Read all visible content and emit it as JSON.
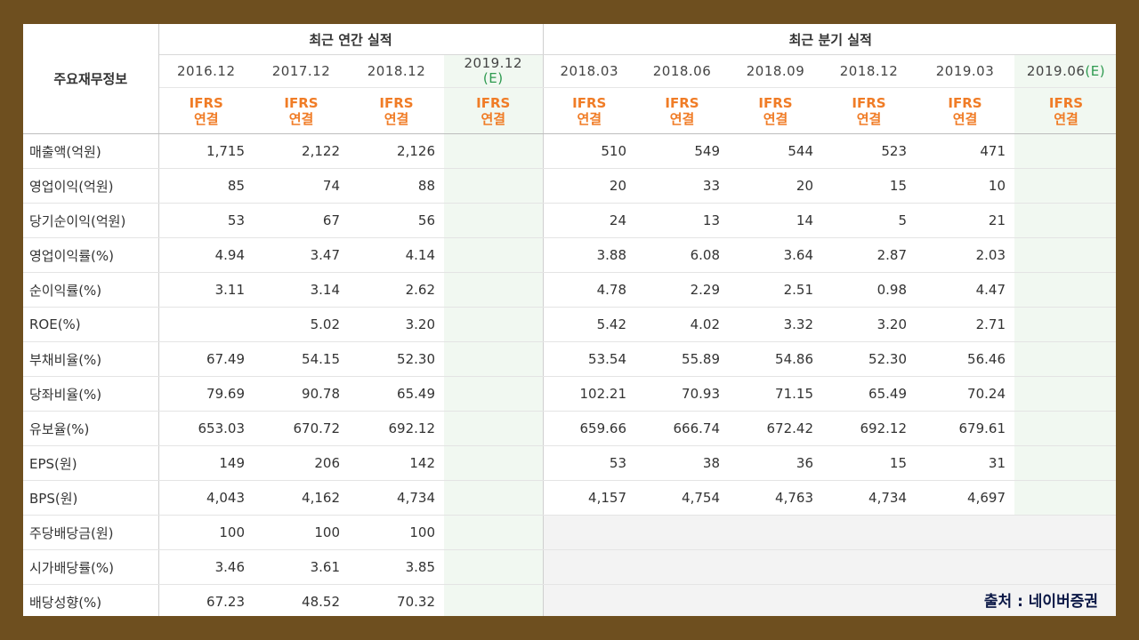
{
  "table": {
    "row_header_title": "주요재무정보",
    "annual_group_title": "최근 연간 실적",
    "quarter_group_title": "최근 분기 실적",
    "periods": [
      {
        "label": "2016.12",
        "est": ""
      },
      {
        "label": "2017.12",
        "est": ""
      },
      {
        "label": "2018.12",
        "est": ""
      },
      {
        "label": "2019.12",
        "est": "(E)"
      },
      {
        "label": "2018.03",
        "est": ""
      },
      {
        "label": "2018.06",
        "est": ""
      },
      {
        "label": "2018.09",
        "est": ""
      },
      {
        "label": "2018.12",
        "est": ""
      },
      {
        "label": "2019.03",
        "est": ""
      },
      {
        "label": "2019.06",
        "est": "(E)"
      }
    ],
    "ifrs_top": "IFRS",
    "ifrs_bottom": "연결",
    "rows": [
      {
        "label": "매출액(억원)",
        "values": [
          "1,715",
          "2,122",
          "2,126",
          "",
          "510",
          "549",
          "544",
          "523",
          "471",
          ""
        ]
      },
      {
        "label": "영업이익(억원)",
        "values": [
          "85",
          "74",
          "88",
          "",
          "20",
          "33",
          "20",
          "15",
          "10",
          ""
        ]
      },
      {
        "label": "당기순이익(억원)",
        "values": [
          "53",
          "67",
          "56",
          "",
          "24",
          "13",
          "14",
          "5",
          "21",
          ""
        ]
      },
      {
        "label": "영업이익률(%)",
        "values": [
          "4.94",
          "3.47",
          "4.14",
          "",
          "3.88",
          "6.08",
          "3.64",
          "2.87",
          "2.03",
          ""
        ]
      },
      {
        "label": "순이익률(%)",
        "values": [
          "3.11",
          "3.14",
          "2.62",
          "",
          "4.78",
          "2.29",
          "2.51",
          "0.98",
          "4.47",
          ""
        ]
      },
      {
        "label": "ROE(%)",
        "values": [
          "",
          "5.02",
          "3.20",
          "",
          "5.42",
          "4.02",
          "3.32",
          "3.20",
          "2.71",
          ""
        ]
      },
      {
        "label": "부채비율(%)",
        "values": [
          "67.49",
          "54.15",
          "52.30",
          "",
          "53.54",
          "55.89",
          "54.86",
          "52.30",
          "56.46",
          ""
        ]
      },
      {
        "label": "당좌비율(%)",
        "values": [
          "79.69",
          "90.78",
          "65.49",
          "",
          "102.21",
          "70.93",
          "71.15",
          "65.49",
          "70.24",
          ""
        ]
      },
      {
        "label": "유보율(%)",
        "values": [
          "653.03",
          "670.72",
          "692.12",
          "",
          "659.66",
          "666.74",
          "672.42",
          "692.12",
          "679.61",
          ""
        ]
      },
      {
        "label": "EPS(원)",
        "values": [
          "149",
          "206",
          "142",
          "",
          "53",
          "38",
          "36",
          "15",
          "31",
          ""
        ]
      },
      {
        "label": "BPS(원)",
        "values": [
          "4,043",
          "4,162",
          "4,734",
          "",
          "4,157",
          "4,754",
          "4,763",
          "4,734",
          "4,697",
          ""
        ]
      },
      {
        "label": "주당배당금(원)",
        "values": [
          "100",
          "100",
          "100",
          "",
          "",
          "",
          "",
          "",
          "",
          ""
        ]
      },
      {
        "label": "시가배당률(%)",
        "values": [
          "3.46",
          "3.61",
          "3.85",
          "",
          "",
          "",
          "",
          "",
          "",
          ""
        ]
      },
      {
        "label": "배당성향(%)",
        "values": [
          "67.23",
          "48.52",
          "70.32",
          "",
          "",
          "",
          "",
          "",
          "",
          ""
        ]
      }
    ]
  },
  "source_caption": "출처 : 네이버증권",
  "colors": {
    "frame": "#6e4f1f",
    "ifrs_text": "#f07c26",
    "estimate_text": "#2e9a50",
    "estimate_bg": "#f1f8f1",
    "empty_dividend_bg": "#f3f3f3",
    "caption_text": "#0b1846"
  }
}
